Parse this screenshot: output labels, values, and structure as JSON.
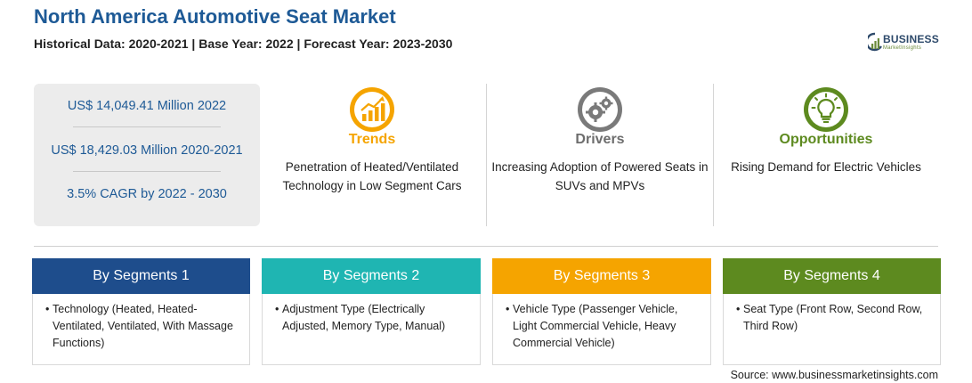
{
  "header": {
    "title": "North America Automotive Seat Market",
    "subtitle": "Historical Data: 2020-2021 | Base Year: 2022 | Forecast Year: 2023-2030"
  },
  "logo": {
    "word": "BUSINESS",
    "sub": "MarketInsights"
  },
  "stats": [
    "US$ 14,049.41 Million 2022",
    "US$ 18,429.03 Million 2020-2021",
    "3.5% CAGR by 2022 - 2030"
  ],
  "columns": [
    {
      "heading": "Trends",
      "text": "Penetration of Heated/Ventilated Technology in Low Segment Cars",
      "color": "#f5a400",
      "icon": "trend-chart-icon"
    },
    {
      "heading": "Drivers",
      "text": "Increasing Adoption of Powered Seats in SUVs and MPVs",
      "color": "#6d6d6d",
      "icon": "gears-icon"
    },
    {
      "heading": "Opportunities",
      "text": "Rising Demand for Electric Vehicles",
      "color": "#5d8a1f",
      "icon": "lightbulb-icon"
    }
  ],
  "segments": [
    {
      "title": "By Segments 1",
      "bullet": "•",
      "text": "Technology (Heated, Heated-Ventilated, Ventilated, With Massage Functions)",
      "color": "#1e4d8c"
    },
    {
      "title": "By Segments 2",
      "bullet": "•",
      "text": "Adjustment Type (Electrically Adjusted, Memory Type, Manual)",
      "color": "#1fb5b2"
    },
    {
      "title": "By Segments 3",
      "bullet": "•",
      "text": "Vehicle Type (Passenger Vehicle, Light Commercial Vehicle, Heavy Commercial Vehicle)",
      "color": "#f5a400"
    },
    {
      "title": "By Segments 4",
      "bullet": "•",
      "text": "Seat Type (Front Row, Second Row, Third Row)",
      "color": "#5d8a1f"
    }
  ],
  "source": "Source: www.businessmarketinsights.com"
}
